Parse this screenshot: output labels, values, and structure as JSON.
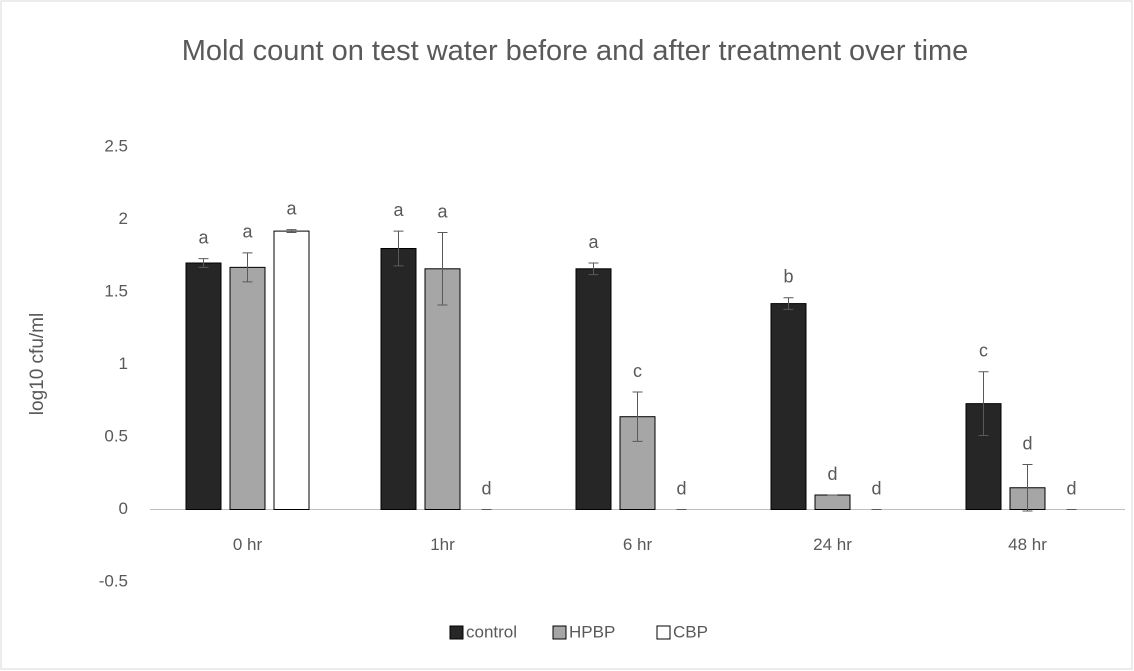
{
  "chart_data": {
    "type": "bar",
    "title": "Mold count on test water before and after treatment over time",
    "ylabel": "log10  cfu/ml",
    "categories": [
      "0 hr",
      "1hr",
      "6 hr",
      "24 hr",
      "48 hr"
    ],
    "series": [
      {
        "name": "control",
        "color": "#262626",
        "values": [
          1.7,
          1.8,
          1.66,
          1.42,
          0.73
        ],
        "errors": [
          0.03,
          0.12,
          0.04,
          0.04,
          0.22
        ],
        "letters": [
          "a",
          "a",
          "a",
          "b",
          "c"
        ]
      },
      {
        "name": "HPBP",
        "color": "#a6a6a6",
        "values": [
          1.67,
          1.66,
          0.64,
          0.1,
          0.15
        ],
        "errors": [
          0.1,
          0.25,
          0.17,
          0,
          0.16
        ],
        "letters": [
          "a",
          "a",
          "c",
          "d",
          "d"
        ]
      },
      {
        "name": "CBP",
        "color": "#ffffff",
        "values": [
          1.92,
          0,
          0,
          0,
          0
        ],
        "errors": [
          0.01,
          0,
          0,
          0,
          0
        ],
        "letters": [
          "a",
          "d",
          "d",
          "d",
          "d"
        ]
      }
    ],
    "ylim": [
      -0.5,
      2.5
    ],
    "yticks": [
      -0.5,
      0,
      0.5,
      1,
      1.5,
      2,
      2.5
    ],
    "grid": false,
    "legend": "bottom"
  }
}
